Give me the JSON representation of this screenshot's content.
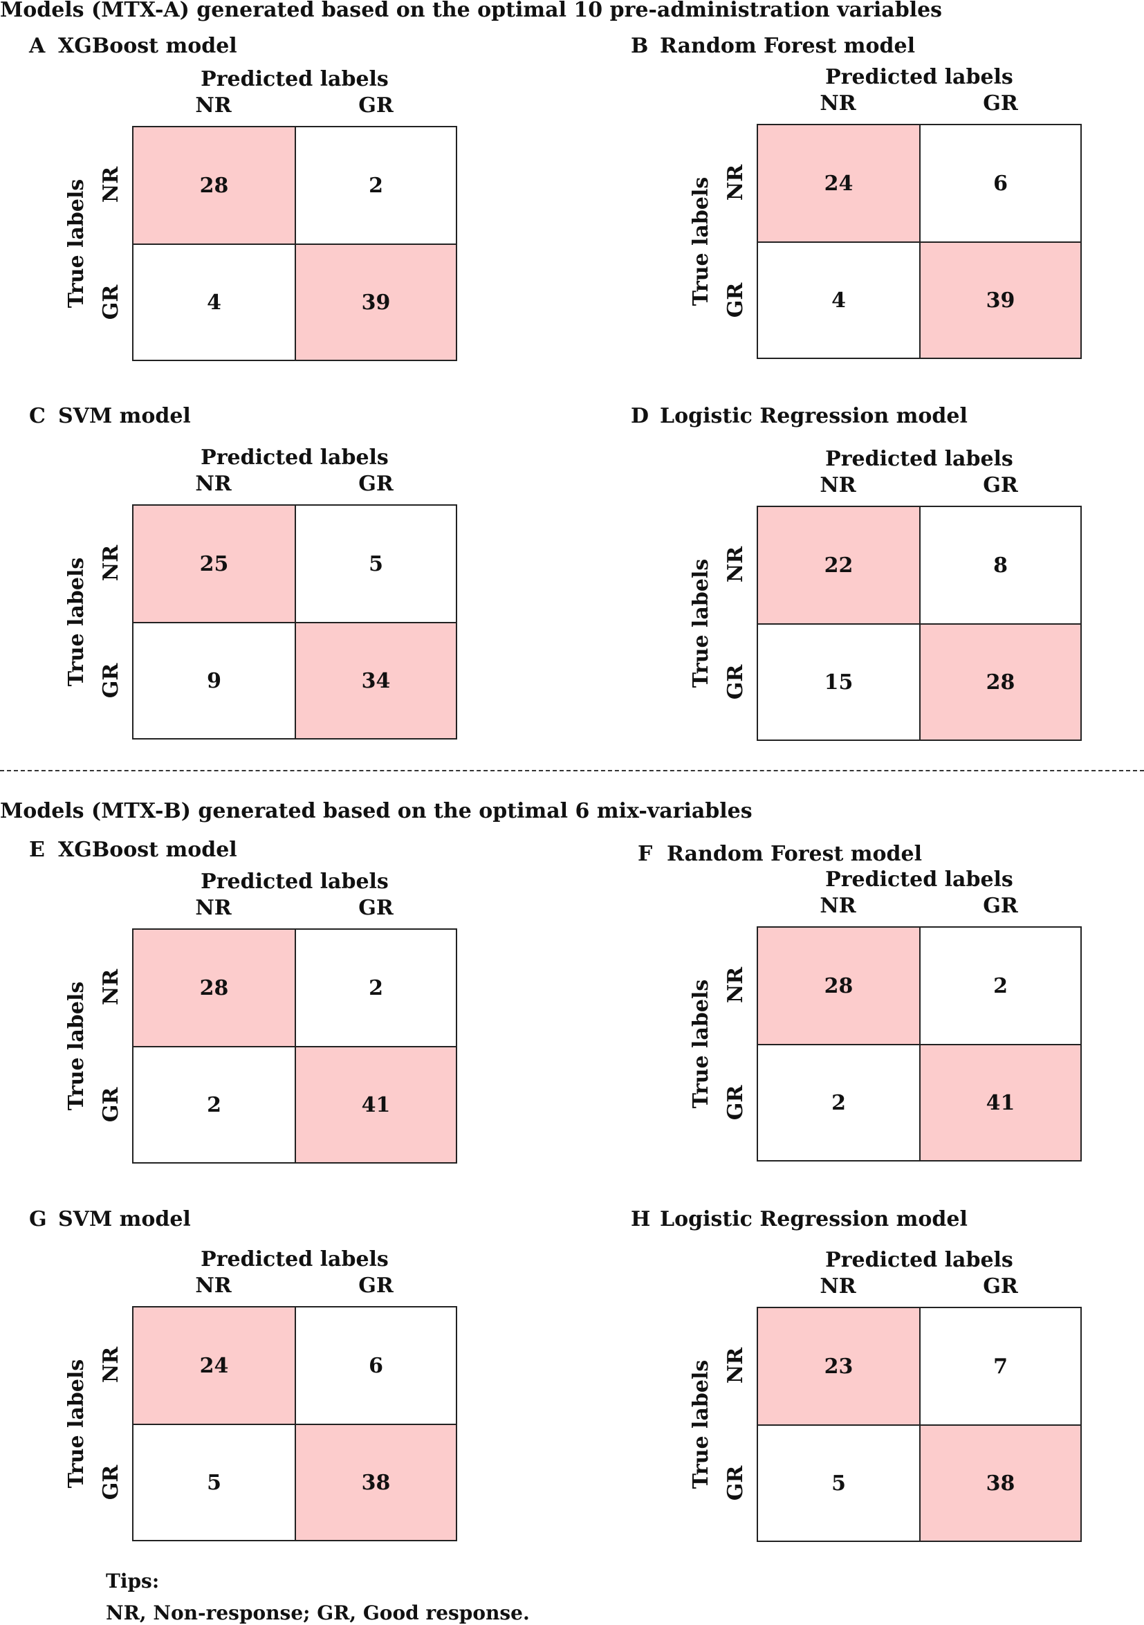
{
  "section_a_title": "Models (MTX-A) generated based on the optimal 10 pre-administration variables",
  "section_b_title": "Models (MTX-B) generated based on the optimal 6 mix-variables",
  "tips": {
    "heading": "Tips:",
    "text": "NR, Non-response; GR, Good response."
  },
  "colors": {
    "diagonal": "#fccccc",
    "offdiagonal": "#ffffff",
    "border": "#222222"
  },
  "chart_data": [
    {
      "type": "heatmap",
      "letter": "A",
      "title": "XGBoost model",
      "xlabel": "Predicted labels",
      "ylabel": "True labels",
      "columns": [
        "NR",
        "GR"
      ],
      "rows": [
        "NR",
        "GR"
      ],
      "values": [
        [
          28,
          2
        ],
        [
          4,
          39
        ]
      ]
    },
    {
      "type": "heatmap",
      "letter": "B",
      "title": "Random Forest model",
      "xlabel": "Predicted labels",
      "ylabel": "True labels",
      "columns": [
        "NR",
        "GR"
      ],
      "rows": [
        "NR",
        "GR"
      ],
      "values": [
        [
          24,
          6
        ],
        [
          4,
          39
        ]
      ]
    },
    {
      "type": "heatmap",
      "letter": "C",
      "title": "SVM model",
      "xlabel": "Predicted labels",
      "ylabel": "True labels",
      "columns": [
        "NR",
        "GR"
      ],
      "rows": [
        "NR",
        "GR"
      ],
      "values": [
        [
          25,
          5
        ],
        [
          9,
          34
        ]
      ]
    },
    {
      "type": "heatmap",
      "letter": "D",
      "title": "Logistic Regression model",
      "xlabel": "Predicted labels",
      "ylabel": "True labels",
      "columns": [
        "NR",
        "GR"
      ],
      "rows": [
        "NR",
        "GR"
      ],
      "values": [
        [
          22,
          8
        ],
        [
          15,
          28
        ]
      ]
    },
    {
      "type": "heatmap",
      "letter": "E",
      "title": "XGBoost model",
      "xlabel": "Predicted labels",
      "ylabel": "True labels",
      "columns": [
        "NR",
        "GR"
      ],
      "rows": [
        "NR",
        "GR"
      ],
      "values": [
        [
          28,
          2
        ],
        [
          2,
          41
        ]
      ]
    },
    {
      "type": "heatmap",
      "letter": "F",
      "title": "Random Forest model",
      "xlabel": "Predicted labels",
      "ylabel": "True labels",
      "columns": [
        "NR",
        "GR"
      ],
      "rows": [
        "NR",
        "GR"
      ],
      "values": [
        [
          28,
          2
        ],
        [
          2,
          41
        ]
      ]
    },
    {
      "type": "heatmap",
      "letter": "G",
      "title": "SVM model",
      "xlabel": "Predicted labels",
      "ylabel": "True labels",
      "columns": [
        "NR",
        "GR"
      ],
      "rows": [
        "NR",
        "GR"
      ],
      "values": [
        [
          24,
          6
        ],
        [
          5,
          38
        ]
      ]
    },
    {
      "type": "heatmap",
      "letter": "H",
      "title": "Logistic Regression model",
      "xlabel": "Predicted labels",
      "ylabel": "True labels",
      "columns": [
        "NR",
        "GR"
      ],
      "rows": [
        "NR",
        "GR"
      ],
      "values": [
        [
          23,
          7
        ],
        [
          5,
          38
        ]
      ]
    }
  ]
}
